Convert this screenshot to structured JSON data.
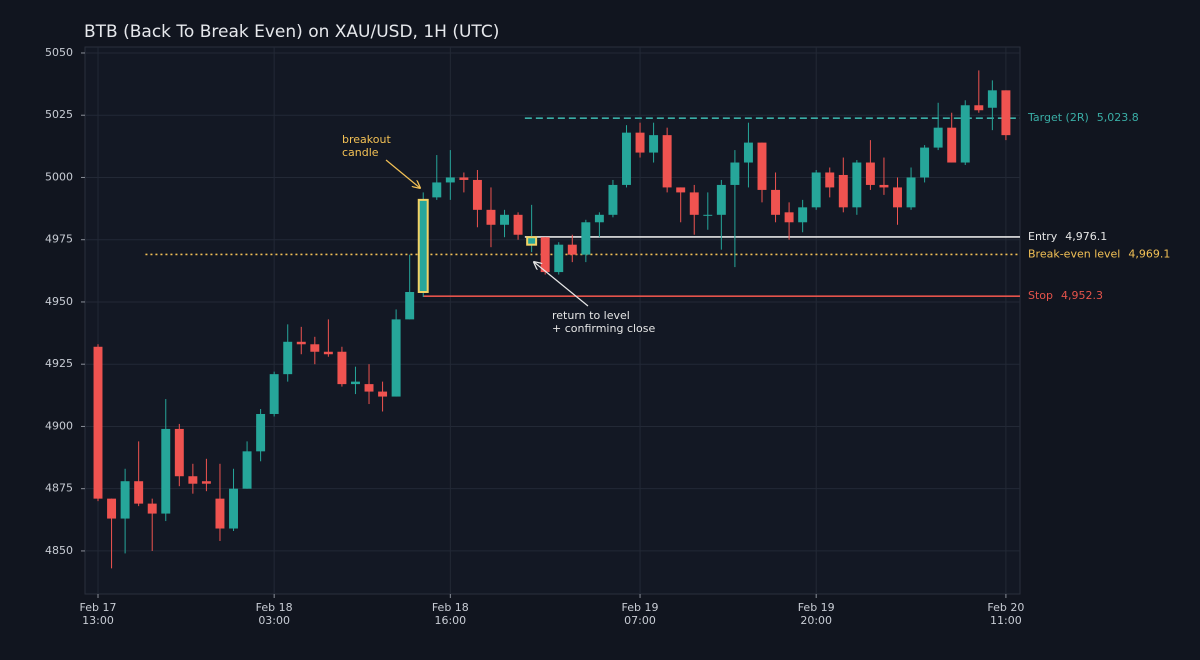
{
  "chart_data": {
    "type": "candlestick",
    "title": "BTB (Back To Break Even) on XAU/USD, 1H (UTC)",
    "x": [
      0,
      1,
      2,
      3,
      4,
      5,
      6,
      7,
      8,
      9,
      10,
      11,
      12,
      13,
      14,
      15,
      16,
      17,
      18,
      19,
      20,
      21,
      22,
      23,
      24,
      25,
      26,
      27,
      28,
      29,
      30,
      31,
      32,
      33,
      34,
      35,
      36,
      37,
      38,
      39,
      40,
      41,
      42,
      43,
      44,
      45,
      46,
      47,
      48,
      49,
      50,
      51,
      52,
      53,
      54,
      55,
      56,
      57,
      58,
      59,
      60,
      61,
      62,
      63,
      64,
      65,
      66,
      67
    ],
    "open": [
      4932,
      4871,
      4863,
      4878,
      4869,
      4865,
      4899,
      4880,
      4878,
      4871,
      4859,
      4875,
      4890,
      4905,
      4921,
      4934,
      4933,
      4930,
      4930,
      4917,
      4917,
      4914,
      4912,
      4943,
      4954,
      4992,
      4998,
      5000,
      4999,
      4987,
      4981,
      4985,
      4973,
      4976,
      4962,
      4973,
      4969,
      4982,
      4985,
      4997,
      5018,
      5010,
      5017,
      4996,
      4994,
      4985,
      4985,
      4997,
      5006,
      5014,
      4995,
      4986,
      4982,
      4988,
      5002,
      5001,
      4988,
      5006,
      4997,
      4996,
      4988,
      5000,
      5012,
      5020,
      5006,
      5029,
      5028,
      5035
    ],
    "high": [
      4933,
      4871,
      4883,
      4894,
      4871,
      4911,
      4901,
      4885,
      4887,
      4885,
      4883,
      4894,
      4907,
      4922,
      4941,
      4940,
      4936,
      4943,
      4932,
      4924,
      4925,
      4918,
      4947,
      4969,
      4994,
      5009,
      5011,
      5002,
      5003,
      4996,
      4987,
      4986,
      4989,
      4976,
      4974,
      4977,
      4983,
      4986,
      4999,
      5021,
      5022,
      5022,
      5020,
      4996,
      4997,
      4994,
      4999,
      5011,
      5022,
      5014,
      5002,
      4990,
      4991,
      5003,
      5004,
      5008,
      5007,
      5015,
      5008,
      5000,
      5004,
      5013,
      5030,
      5026,
      5031,
      5043,
      5039,
      5035
    ],
    "low": [
      4870,
      4843,
      4849,
      4868,
      4850,
      4862,
      4876,
      4873,
      4874,
      4854,
      4858,
      4875,
      4886,
      4904,
      4918,
      4929,
      4925,
      4928,
      4916,
      4913,
      4909,
      4906,
      4912,
      4943,
      4952,
      4991,
      4991,
      4994,
      4980,
      4972,
      4976,
      4975,
      4970,
      4961,
      4961,
      4966,
      4966,
      4976,
      4984,
      4996,
      5008,
      5006,
      4994,
      4982,
      4977,
      4979,
      4971,
      4964,
      4996,
      4990,
      4982,
      4975,
      4978,
      4987,
      4992,
      4986,
      4985,
      4995,
      4993,
      4981,
      4987,
      4998,
      5011,
      5006,
      5005,
      5026,
      5019,
      5015
    ],
    "close": [
      4871,
      4863,
      4878,
      4869,
      4865,
      4899,
      4880,
      4877,
      4877,
      4859,
      4875,
      4890,
      4905,
      4921,
      4934,
      4933,
      4930,
      4929,
      4917,
      4918,
      4914,
      4912,
      4943,
      4954,
      4991,
      4998,
      5000,
      4999,
      4987,
      4981,
      4985,
      4977,
      4976,
      4962,
      4973,
      4969,
      4982,
      4985,
      4997,
      5018,
      5010,
      5017,
      4996,
      4994,
      4985,
      4985,
      4997,
      5006,
      5014,
      4995,
      4985,
      4982,
      4988,
      5002,
      4996,
      4988,
      5006,
      4997,
      4996,
      4988,
      5000,
      5012,
      5020,
      5006,
      5029,
      5027,
      5035,
      5017
    ],
    "up_color": "#26a69a",
    "down_color": "#ef5350",
    "highlight": [
      24,
      32
    ],
    "highlight_color": "#f2d266",
    "xlim": [
      -0.96,
      68.04
    ],
    "ylim": [
      4832.7,
      5052.4
    ],
    "yticks": [
      4850,
      4875,
      4900,
      4925,
      4950,
      4975,
      5000,
      5025,
      5050
    ],
    "xticks": [
      {
        "value": 0,
        "label": "Feb 17\n13:00"
      },
      {
        "value": 13,
        "label": "Feb 18\n03:00"
      },
      {
        "value": 26,
        "label": "Feb 18\n16:00"
      },
      {
        "value": 40,
        "label": "Feb 19\n07:00"
      },
      {
        "value": 53,
        "label": "Feb 19\n20:00"
      },
      {
        "value": 67,
        "label": "Feb 20\n11:00"
      }
    ],
    "grid": true,
    "levels": [
      {
        "name": "Target (2R)",
        "value": 5023.8,
        "value_label": "5,023.8",
        "color": "#3aaea6",
        "style": "dashed",
        "x_from": 31.5
      },
      {
        "name": "Entry",
        "value": 4976.1,
        "value_label": "4,976.1",
        "color": "#e6e6e6",
        "style": "solid",
        "x_from": 31.5
      },
      {
        "name": "Break-even level",
        "value": 4969.1,
        "value_label": "4,969.1",
        "color": "#f2c055",
        "style": "dotted",
        "x_from": 3.5
      },
      {
        "name": "Stop",
        "value": 4952.3,
        "value_label": "4,952.3",
        "color": "#e5534b",
        "style": "solid",
        "x_from": 24
      }
    ],
    "annotations": [
      {
        "text": "breakout\ncandle",
        "color": "#f2c055"
      },
      {
        "text": "return to level\n+ confirming close",
        "color": "#e6e6e6"
      }
    ]
  }
}
